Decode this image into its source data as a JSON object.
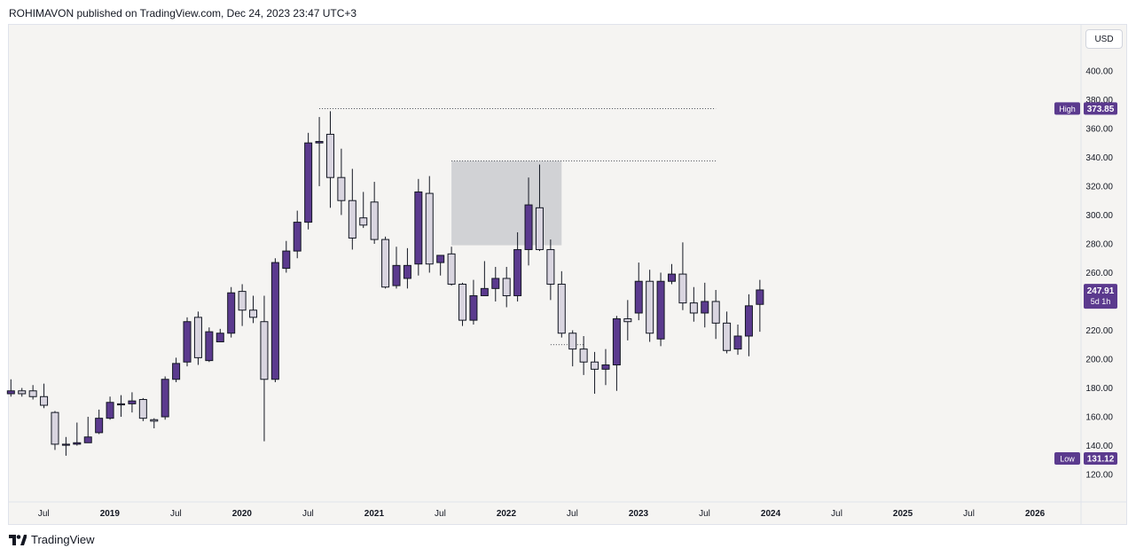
{
  "header": {
    "text": "ROHIMAVON published on TradingView.com, Dec 24, 2023 23:47 UTC+3"
  },
  "currency": "USD",
  "footer": {
    "brand": "TradingView"
  },
  "colors": {
    "up": "#5b3a8e",
    "down": "#d9d5e0",
    "outline": "#131722",
    "tag": "#5b3a8e",
    "zone": "#d1d2d5"
  },
  "chart_data": {
    "type": "candlestick",
    "interval": "monthly",
    "ylim": [
      110,
      410
    ],
    "yticks": [
      120,
      140,
      160,
      180,
      200,
      220,
      240,
      260,
      280,
      300,
      320,
      340,
      360,
      380,
      400
    ],
    "ytick_labels": [
      "120.00",
      "140.00",
      "160.00",
      "180.00",
      "200.00",
      "220.00",
      "240.00",
      "260.00",
      "280.00",
      "300.00",
      "320.00",
      "340.00",
      "360.00",
      "380.00",
      "400.00"
    ],
    "xticks": [
      {
        "month": 0,
        "label": "Jul"
      },
      {
        "month": 6,
        "label": "2019"
      },
      {
        "month": 12,
        "label": "Jul"
      },
      {
        "month": 18,
        "label": "2020"
      },
      {
        "month": 24,
        "label": "Jul"
      },
      {
        "month": 30,
        "label": "2021"
      },
      {
        "month": 36,
        "label": "Jul"
      },
      {
        "month": 42,
        "label": "2022"
      },
      {
        "month": 48,
        "label": "Jul"
      },
      {
        "month": 54,
        "label": "2023"
      },
      {
        "month": 60,
        "label": "Jul"
      },
      {
        "month": 66,
        "label": "2024"
      },
      {
        "month": 72,
        "label": "Jul"
      },
      {
        "month": 78,
        "label": "2025"
      },
      {
        "month": 84,
        "label": "Jul"
      },
      {
        "month": 90,
        "label": "2026"
      }
    ],
    "candles": [
      [
        176,
        178,
        186,
        174
      ],
      [
        178,
        176,
        180,
        174
      ],
      [
        178,
        174,
        182,
        172
      ],
      [
        174,
        168,
        183,
        166
      ],
      [
        163,
        141,
        164,
        137
      ],
      [
        141,
        141,
        146,
        133
      ],
      [
        141,
        142,
        156,
        140
      ],
      [
        142,
        146,
        160,
        142
      ],
      [
        149,
        159,
        165,
        148
      ],
      [
        159,
        170,
        174,
        158
      ],
      [
        169,
        169,
        175,
        160
      ],
      [
        169,
        171,
        177,
        163
      ],
      [
        172,
        159,
        173,
        157
      ],
      [
        158,
        157,
        159,
        152
      ],
      [
        160,
        186,
        188,
        158
      ],
      [
        186,
        197,
        201,
        184
      ],
      [
        198,
        226,
        229,
        195
      ],
      [
        229,
        201,
        233,
        196
      ],
      [
        199,
        219,
        222,
        198
      ],
      [
        212,
        218,
        221,
        214
      ],
      [
        218,
        246,
        250,
        215
      ],
      [
        247,
        234,
        252,
        223
      ],
      [
        234,
        229,
        244,
        225
      ],
      [
        226,
        186,
        244,
        143
      ],
      [
        186,
        267,
        270,
        184
      ],
      [
        263,
        275,
        282,
        260
      ],
      [
        275,
        295,
        303,
        270
      ],
      [
        295,
        350,
        357,
        290
      ],
      [
        350,
        351,
        368,
        320
      ],
      [
        356,
        326,
        372,
        305
      ],
      [
        326,
        310,
        346,
        300
      ],
      [
        310,
        284,
        332,
        276
      ],
      [
        298,
        293,
        316,
        291
      ],
      [
        309,
        283,
        323,
        280
      ],
      [
        283,
        250,
        285,
        249
      ],
      [
        251,
        265,
        278,
        249
      ],
      [
        256,
        265,
        277,
        249
      ],
      [
        266,
        316,
        325,
        258
      ],
      [
        315,
        266,
        327,
        260
      ],
      [
        267,
        272,
        272,
        258
      ],
      [
        273,
        252,
        278,
        251
      ],
      [
        252,
        227,
        253,
        223
      ],
      [
        227,
        244,
        255,
        224
      ],
      [
        244,
        249,
        268,
        244
      ],
      [
        249,
        256,
        264,
        240
      ],
      [
        256,
        244,
        264,
        236
      ],
      [
        244,
        276,
        288,
        240
      ],
      [
        276,
        307,
        326,
        265
      ],
      [
        305,
        276,
        335,
        275
      ],
      [
        276,
        252,
        283,
        241
      ],
      [
        252,
        218,
        261,
        215
      ],
      [
        218,
        207,
        220,
        195
      ],
      [
        207,
        198,
        216,
        189
      ],
      [
        198,
        193,
        205,
        176
      ],
      [
        193,
        196,
        207,
        182
      ],
      [
        196,
        228,
        230,
        178
      ],
      [
        228,
        226,
        241,
        213
      ],
      [
        232,
        254,
        267,
        227
      ],
      [
        254,
        218,
        262,
        212
      ],
      [
        214,
        254,
        260,
        209
      ],
      [
        254,
        259,
        266,
        252
      ],
      [
        259,
        239,
        281,
        234
      ],
      [
        239,
        232,
        250,
        226
      ],
      [
        232,
        240,
        253,
        222
      ],
      [
        240,
        225,
        248,
        214
      ],
      [
        225,
        206,
        233,
        204
      ],
      [
        207,
        216,
        224,
        203
      ],
      [
        216,
        237,
        245,
        202
      ],
      [
        238,
        248,
        255,
        219
      ]
    ],
    "high_line": 373.85,
    "high_line_start_month": 28,
    "high_line_end_month": 64,
    "zone": {
      "start_month": 40,
      "end_month": 50,
      "top": 337.5,
      "bottom": 279
    },
    "zone_line_end_month": 64,
    "support_line": {
      "value": 210,
      "start_month": 49,
      "end_month": 52
    },
    "tags": [
      {
        "name": "high",
        "label": "High",
        "value_text": "373.85",
        "value": 373.85
      },
      {
        "name": "last",
        "label": "",
        "value_text": "247.91",
        "sub_text": "5d 1h",
        "value": 247.91
      },
      {
        "name": "low",
        "label": "Low",
        "value_text": "131.12",
        "value": 131.12
      }
    ]
  }
}
